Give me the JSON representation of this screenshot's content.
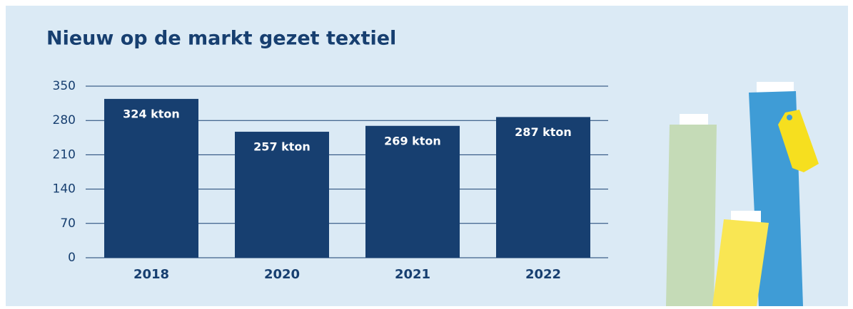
{
  "chart_data": {
    "type": "bar",
    "title": "Nieuw op de markt gezet textiel",
    "categories": [
      "2018",
      "2020",
      "2021",
      "2022"
    ],
    "values": [
      324,
      257,
      269,
      287
    ],
    "value_labels": [
      "324 kton",
      "257 kton",
      "269 kton",
      "287 kton"
    ],
    "color": "#173f70",
    "ylim": [
      0,
      350
    ],
    "yticks": [
      0,
      70,
      140,
      210,
      280,
      350
    ],
    "grid": true
  }
}
